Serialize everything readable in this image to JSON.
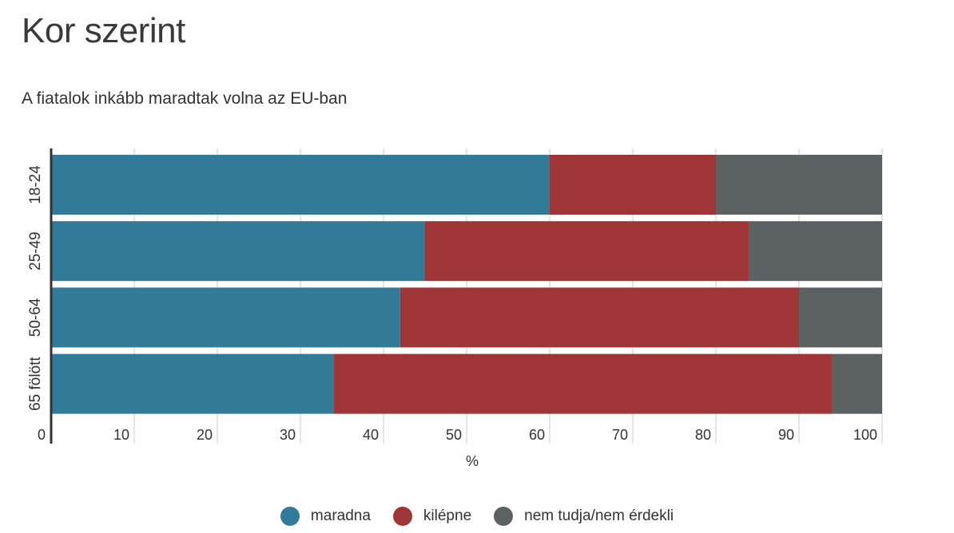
{
  "header": {
    "title": "Kor szerint",
    "subtitle": "A fiatalok inkább maradtak volna az EU-ban"
  },
  "chart_data": {
    "type": "bar",
    "orientation": "horizontal",
    "stacked": true,
    "categories": [
      "18-24",
      "25-49",
      "50-64",
      "65 fölött"
    ],
    "series": [
      {
        "name": "maradna",
        "color": "#327b98",
        "values": [
          60,
          45,
          42,
          34
        ]
      },
      {
        "name": "kilépne",
        "color": "#a03537",
        "values": [
          20,
          39,
          48,
          60
        ]
      },
      {
        "name": "nem tudja/nem érdekli",
        "color": "#5b6061",
        "values": [
          20,
          16,
          10,
          6
        ]
      }
    ],
    "xlabel": "%",
    "xlim": [
      0,
      100
    ],
    "xticks": [
      0,
      10,
      20,
      30,
      40,
      50,
      60,
      70,
      80,
      90,
      100
    ],
    "grid": true,
    "legend_position": "bottom"
  }
}
